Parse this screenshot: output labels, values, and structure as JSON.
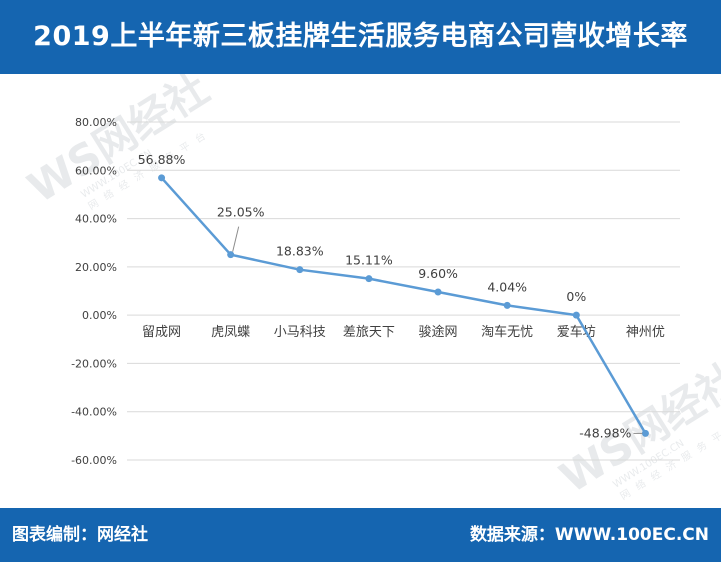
{
  "header": {
    "title": "2019上半年新三板挂牌生活服务电商公司营收增长率"
  },
  "footer": {
    "left_label": "图表编制：网经社",
    "right_label": "数据来源：WWW.100EC.CN"
  },
  "watermark": {
    "logo": "WS网经社",
    "url": "WWW.100EC.CN",
    "tagline": "网络经济服务平台"
  },
  "colors": {
    "header_bg": "#1565b0",
    "line": "#5b9bd5",
    "grid": "#d9d9d9",
    "text": "#404040"
  },
  "chart_data": {
    "type": "line",
    "title": "",
    "xlabel": "",
    "ylabel": "",
    "categories": [
      "留成网",
      "虎凤蝶",
      "小马科技",
      "差旅天下",
      "骏途网",
      "淘车无忧",
      "爱车坊",
      "神州优"
    ],
    "series": [
      {
        "values": [
          56.88,
          25.05,
          18.83,
          15.11,
          9.6,
          4.04,
          0.0,
          -48.98
        ]
      }
    ],
    "data_labels": [
      "56.88%",
      "25.05%",
      "18.83%",
      "15.11%",
      "9.60%",
      "4.04%",
      "0%",
      "-48.98%"
    ],
    "y_ticks": [
      80,
      60,
      40,
      20,
      0,
      -20,
      -40,
      -60
    ],
    "y_tick_labels": [
      "80.00%",
      "60.00%",
      "40.00%",
      "20.00%",
      "0.00%",
      "-20.00%",
      "-40.00%",
      "-60.00%"
    ],
    "ylim": [
      -60,
      80
    ],
    "grid": true,
    "legend": "none"
  }
}
